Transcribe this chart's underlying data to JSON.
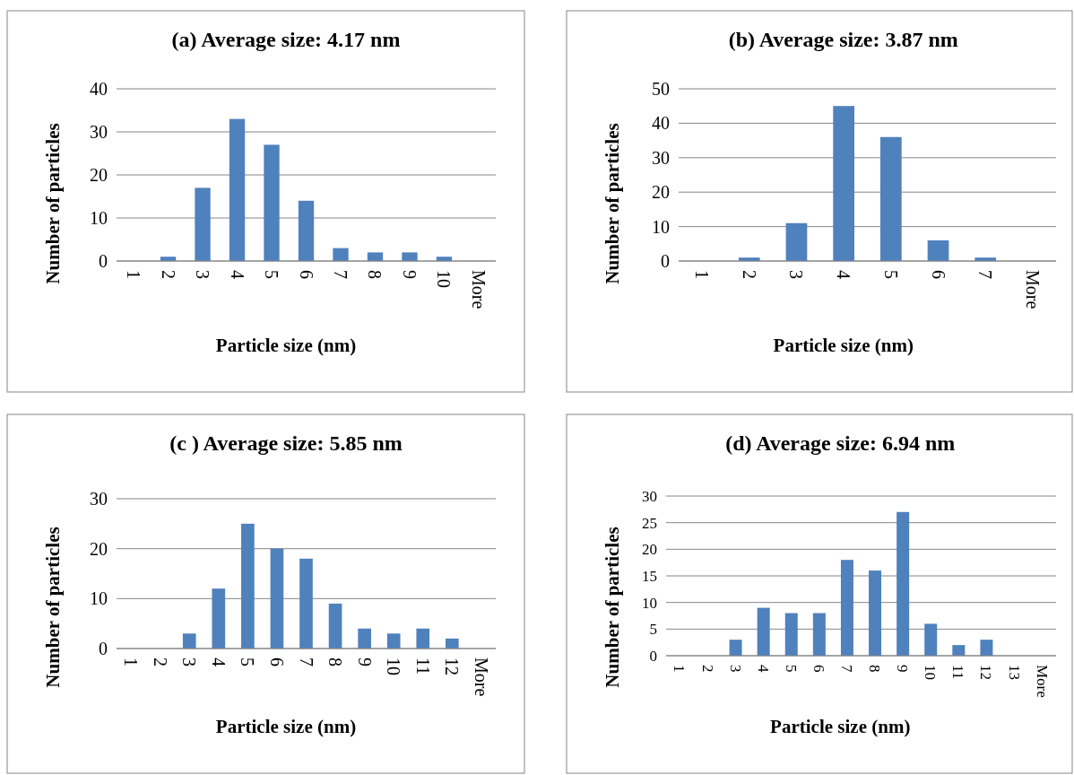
{
  "chart_data": [
    {
      "type": "bar",
      "title": "(a) Average size: 4.17 nm",
      "xlabel": "Particle size (nm)",
      "ylabel": "Number of particles",
      "categories": [
        "1",
        "2",
        "3",
        "4",
        "5",
        "6",
        "7",
        "8",
        "9",
        "10",
        "More"
      ],
      "values": [
        0,
        1,
        17,
        33,
        27,
        14,
        3,
        2,
        2,
        1,
        0
      ],
      "color": "#4f81bd",
      "ylim": [
        0,
        40
      ],
      "yticks": [
        0,
        10,
        20,
        30,
        40
      ],
      "grid": "y"
    },
    {
      "type": "bar",
      "title": "(b) Average size: 3.87 nm",
      "xlabel": "Particle size (nm)",
      "ylabel": "Number of particles",
      "categories": [
        "1",
        "2",
        "3",
        "4",
        "5",
        "6",
        "7",
        "More"
      ],
      "values": [
        0,
        1,
        11,
        45,
        36,
        6,
        1,
        0
      ],
      "color": "#4f81bd",
      "ylim": [
        0,
        50
      ],
      "yticks": [
        0,
        10,
        20,
        30,
        40,
        50
      ],
      "grid": "y"
    },
    {
      "type": "bar",
      "title": "(c ) Average size: 5.85 nm",
      "xlabel": "Particle size (nm)",
      "ylabel": "Number of particles",
      "categories": [
        "1",
        "2",
        "3",
        "4",
        "5",
        "6",
        "7",
        "8",
        "9",
        "10",
        "11",
        "12",
        "More"
      ],
      "values": [
        0,
        0,
        3,
        12,
        25,
        20,
        18,
        9,
        4,
        3,
        4,
        2,
        0
      ],
      "color": "#4f81bd",
      "ylim": [
        0,
        30
      ],
      "yticks": [
        0,
        10,
        20,
        30
      ],
      "grid": "y"
    },
    {
      "type": "bar",
      "title": "(d) Average size: 6.94 nm",
      "xlabel": "Particle size (nm)",
      "ylabel": "Number of particles",
      "categories": [
        "1",
        "2",
        "3",
        "4",
        "5",
        "6",
        "7",
        "8",
        "9",
        "10",
        "11",
        "12",
        "13",
        "More"
      ],
      "values": [
        0,
        0,
        3,
        9,
        8,
        8,
        18,
        16,
        27,
        6,
        2,
        3,
        0,
        0
      ],
      "color": "#4f81bd",
      "ylim": [
        0,
        30
      ],
      "yticks": [
        0,
        5,
        10,
        15,
        20,
        25,
        30
      ],
      "grid": "y"
    }
  ]
}
